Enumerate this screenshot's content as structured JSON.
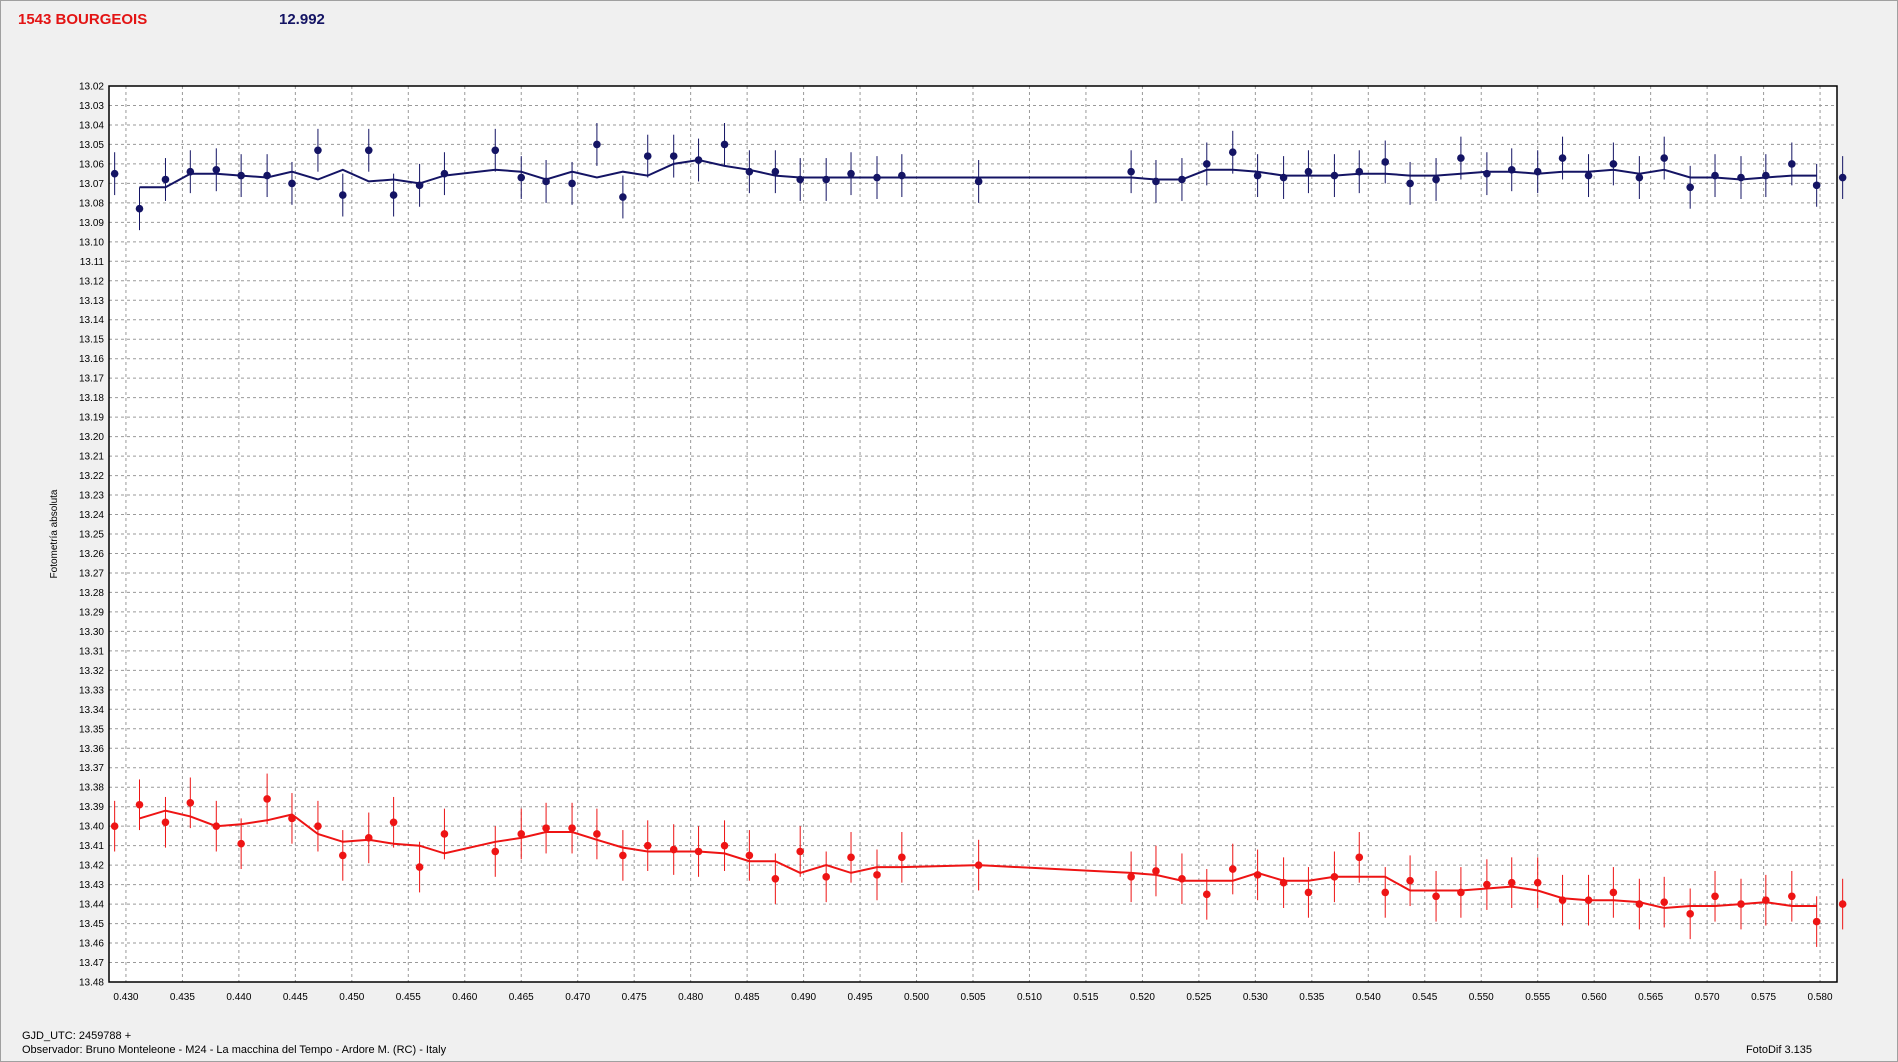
{
  "header": {
    "star_name": "1543 BOURGEOIS",
    "reference_magnitude": "12.992",
    "star_name_color": "#e31414",
    "reference_magnitude_color": "#141464"
  },
  "footer": {
    "gjd": "GJD_UTC: 2459788 +",
    "observer": "Observador: Bruno Monteleone - M24 - La macchina del Tempo - Ardore M. (RC) - Italy",
    "version": "FotoDif 3.135"
  },
  "chart_data": {
    "type": "scatter",
    "ylabel": "Fotometría absoluta",
    "xlabel": "",
    "xlim": [
      0.4285,
      0.5815
    ],
    "ylim": [
      13.02,
      13.48
    ],
    "y_inverted": true,
    "grid": true,
    "x_ticks": [
      0.43,
      0.435,
      0.44,
      0.445,
      0.45,
      0.455,
      0.46,
      0.465,
      0.47,
      0.475,
      0.48,
      0.485,
      0.49,
      0.495,
      0.5,
      0.505,
      0.51,
      0.515,
      0.52,
      0.525,
      0.53,
      0.535,
      0.54,
      0.545,
      0.55,
      0.555,
      0.56,
      0.565,
      0.57,
      0.575,
      0.58
    ],
    "y_ticks": [
      13.02,
      13.03,
      13.04,
      13.05,
      13.06,
      13.07,
      13.08,
      13.09,
      13.1,
      13.11,
      13.12,
      13.13,
      13.14,
      13.15,
      13.16,
      13.17,
      13.18,
      13.19,
      13.2,
      13.21,
      13.22,
      13.23,
      13.24,
      13.25,
      13.26,
      13.27,
      13.28,
      13.29,
      13.3,
      13.31,
      13.32,
      13.33,
      13.34,
      13.35,
      13.36,
      13.37,
      13.38,
      13.39,
      13.4,
      13.41,
      13.42,
      13.43,
      13.44,
      13.45,
      13.46,
      13.47,
      13.48
    ],
    "series": [
      {
        "color": "#141464",
        "error": 0.011,
        "x": [
          0.429,
          0.4312,
          0.4335,
          0.4357,
          0.438,
          0.4402,
          0.4425,
          0.4447,
          0.447,
          0.4492,
          0.4515,
          0.4537,
          0.456,
          0.4582,
          0.4627,
          0.465,
          0.4672,
          0.4695,
          0.4717,
          0.474,
          0.4762,
          0.4785,
          0.4807,
          0.483,
          0.4852,
          0.4875,
          0.4897,
          0.492,
          0.4942,
          0.4965,
          0.4987,
          0.5055,
          0.519,
          0.5212,
          0.5235,
          0.5257,
          0.528,
          0.5302,
          0.5325,
          0.5347,
          0.537,
          0.5392,
          0.5415,
          0.5437,
          0.546,
          0.5482,
          0.5505,
          0.5527,
          0.555,
          0.5572,
          0.5595,
          0.5617,
          0.564,
          0.5662,
          0.5685,
          0.5707,
          0.573,
          0.5752,
          0.5775,
          0.5797,
          0.582
        ],
        "y": [
          13.065,
          13.083,
          13.068,
          13.064,
          13.063,
          13.066,
          13.066,
          13.07,
          13.053,
          13.076,
          13.053,
          13.076,
          13.071,
          13.065,
          13.053,
          13.067,
          13.069,
          13.07,
          13.05,
          13.077,
          13.056,
          13.056,
          13.058,
          13.05,
          13.064,
          13.064,
          13.068,
          13.068,
          13.065,
          13.067,
          13.066,
          13.069,
          13.064,
          13.069,
          13.068,
          13.06,
          13.054,
          13.066,
          13.067,
          13.064,
          13.066,
          13.064,
          13.059,
          13.07,
          13.068,
          13.057,
          13.065,
          13.063,
          13.064,
          13.057,
          13.066,
          13.06,
          13.067,
          13.057,
          13.072,
          13.066,
          13.067,
          13.066,
          13.06,
          13.071,
          13.067
        ],
        "fit": [
          null,
          13.072,
          13.072,
          13.065,
          13.065,
          13.066,
          13.067,
          13.064,
          13.068,
          13.063,
          13.069,
          13.068,
          13.07,
          13.066,
          13.063,
          13.064,
          13.068,
          13.064,
          13.067,
          13.064,
          13.066,
          13.06,
          13.058,
          13.061,
          13.063,
          13.066,
          13.067,
          13.067,
          13.067,
          13.067,
          13.067,
          13.067,
          13.067,
          13.068,
          13.068,
          13.063,
          13.063,
          13.064,
          13.066,
          13.066,
          13.066,
          13.065,
          13.065,
          13.066,
          13.066,
          13.065,
          13.064,
          13.064,
          13.065,
          13.064,
          13.064,
          13.063,
          13.065,
          13.063,
          13.067,
          13.067,
          13.068,
          13.067,
          13.066,
          13.066,
          null
        ]
      },
      {
        "color": "#ee1414",
        "error": 0.013,
        "x": [
          0.429,
          0.4312,
          0.4335,
          0.4357,
          0.438,
          0.4402,
          0.4425,
          0.4447,
          0.447,
          0.4492,
          0.4515,
          0.4537,
          0.456,
          0.4582,
          0.4627,
          0.465,
          0.4672,
          0.4695,
          0.4717,
          0.474,
          0.4762,
          0.4785,
          0.4807,
          0.483,
          0.4852,
          0.4875,
          0.4897,
          0.492,
          0.4942,
          0.4965,
          0.4987,
          0.5055,
          0.519,
          0.5212,
          0.5235,
          0.5257,
          0.528,
          0.5302,
          0.5325,
          0.5347,
          0.537,
          0.5392,
          0.5415,
          0.5437,
          0.546,
          0.5482,
          0.5505,
          0.5527,
          0.555,
          0.5572,
          0.5595,
          0.5617,
          0.564,
          0.5662,
          0.5685,
          0.5707,
          0.573,
          0.5752,
          0.5775,
          0.5797,
          0.582
        ],
        "y": [
          13.4,
          13.389,
          13.398,
          13.388,
          13.4,
          13.409,
          13.386,
          13.396,
          13.4,
          13.415,
          13.406,
          13.398,
          13.421,
          13.404,
          13.413,
          13.404,
          13.401,
          13.401,
          13.404,
          13.415,
          13.41,
          13.412,
          13.413,
          13.41,
          13.415,
          13.427,
          13.413,
          13.426,
          13.416,
          13.425,
          13.416,
          13.42,
          13.426,
          13.423,
          13.427,
          13.435,
          13.422,
          13.425,
          13.429,
          13.434,
          13.426,
          13.416,
          13.434,
          13.428,
          13.436,
          13.434,
          13.43,
          13.429,
          13.429,
          13.438,
          13.438,
          13.434,
          13.44,
          13.439,
          13.445,
          13.436,
          13.44,
          13.438,
          13.436,
          13.449,
          13.44
        ],
        "fit": [
          null,
          13.396,
          13.392,
          13.395,
          13.4,
          13.399,
          13.397,
          13.394,
          13.404,
          13.408,
          13.407,
          13.409,
          13.41,
          13.414,
          13.408,
          13.406,
          13.403,
          13.403,
          13.407,
          13.411,
          13.413,
          13.413,
          13.413,
          13.414,
          13.418,
          13.418,
          13.424,
          13.42,
          13.424,
          13.421,
          13.421,
          13.42,
          13.424,
          13.425,
          13.428,
          13.428,
          13.428,
          13.424,
          13.428,
          13.428,
          13.426,
          13.426,
          13.426,
          13.433,
          13.433,
          13.433,
          13.432,
          13.431,
          13.433,
          13.437,
          13.438,
          13.438,
          13.439,
          13.442,
          13.441,
          13.441,
          13.44,
          13.439,
          13.441,
          13.441,
          null
        ]
      }
    ]
  }
}
